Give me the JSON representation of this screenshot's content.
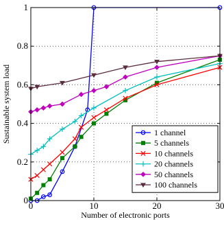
{
  "chart_data": {
    "type": "line",
    "title": "",
    "xlabel": "Number of electronic ports",
    "ylabel": "Sustainable system load",
    "xlim": [
      0,
      30
    ],
    "ylim": [
      0,
      1
    ],
    "xticks": [
      0,
      10,
      20,
      30
    ],
    "yticks": [
      0,
      0.2,
      0.4,
      0.6,
      0.8,
      1
    ],
    "xtick_labels": [
      "0",
      "10",
      "20",
      "30"
    ],
    "ytick_labels": [
      "0",
      "0.2",
      "0.4",
      "0.6",
      "0.8",
      "1"
    ],
    "grid": true,
    "legend_position": "bottom-right",
    "series": [
      {
        "name": "1 channel",
        "color": "#0000ff",
        "marker": "circle",
        "x": [
          0,
          1,
          2,
          3,
          5,
          7,
          9,
          10,
          30
        ],
        "y": [
          0,
          0,
          0.02,
          0.03,
          0.15,
          0.28,
          0.47,
          1,
          1
        ]
      },
      {
        "name": "5 channels",
        "color": "#008000",
        "marker": "square",
        "x": [
          0,
          1,
          2,
          3,
          5,
          7,
          8,
          10,
          12,
          15,
          20,
          30
        ],
        "y": [
          0.01,
          0.04,
          0.08,
          0.11,
          0.22,
          0.28,
          0.33,
          0.4,
          0.45,
          0.52,
          0.61,
          0.73
        ]
      },
      {
        "name": "10 channels",
        "color": "#ff0000",
        "marker": "x",
        "x": [
          0,
          1,
          2,
          3,
          5,
          7,
          8,
          10,
          12,
          15,
          20,
          30
        ],
        "y": [
          0.11,
          0.13,
          0.16,
          0.19,
          0.25,
          0.32,
          0.38,
          0.43,
          0.47,
          0.53,
          0.6,
          0.69
        ]
      },
      {
        "name": "20 channels",
        "color": "#00bfbf",
        "marker": "plus",
        "x": [
          0,
          1,
          2,
          3,
          5,
          7,
          8,
          10,
          15,
          20,
          30
        ],
        "y": [
          0.24,
          0.26,
          0.28,
          0.32,
          0.37,
          0.41,
          0.44,
          0.48,
          0.57,
          0.64,
          0.71
        ]
      },
      {
        "name": "50 channels",
        "color": "#bf00bf",
        "marker": "diamond",
        "x": [
          0,
          1,
          2,
          3,
          5,
          8,
          10,
          12,
          15,
          20,
          30
        ],
        "y": [
          0.46,
          0.47,
          0.48,
          0.49,
          0.5,
          0.55,
          0.57,
          0.59,
          0.64,
          0.69,
          0.75
        ]
      },
      {
        "name": "100 channels",
        "color": "#5a2e3a",
        "marker": "triangle-down",
        "x": [
          0,
          1,
          5,
          10,
          15,
          20,
          30
        ],
        "y": [
          0.58,
          0.59,
          0.61,
          0.65,
          0.69,
          0.72,
          0.75
        ]
      }
    ]
  }
}
